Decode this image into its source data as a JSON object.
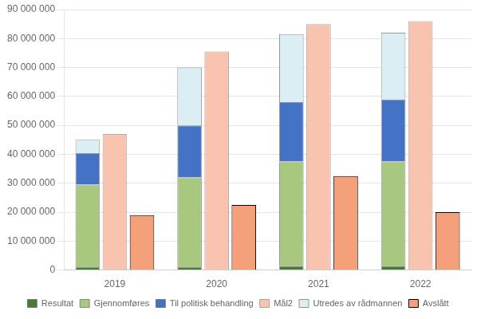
{
  "chart_data": {
    "type": "bar",
    "categories": [
      "2019",
      "2020",
      "2021",
      "2022"
    ],
    "series": [
      {
        "name": "Resultat",
        "color": "#4a7a3a",
        "stacked": true,
        "values": [
          1000000,
          1000000,
          1500000,
          1500000
        ]
      },
      {
        "name": "Gjennomføres",
        "color": "#a8c880",
        "stacked": true,
        "values": [
          28500000,
          31000000,
          36000000,
          36000000
        ]
      },
      {
        "name": "Til politisk behandling",
        "color": "#4472c4",
        "stacked": true,
        "values": [
          11000000,
          18000000,
          20500000,
          21500000
        ]
      },
      {
        "name": "Mål2",
        "color": "#f8c4b0",
        "stacked": false,
        "values": [
          47000000,
          75500000,
          85000000,
          86000000
        ]
      },
      {
        "name": "Utredes av rådmannen",
        "color": "#daeef3",
        "stacked": true,
        "values": [
          4500000,
          20000000,
          23500000,
          23000000
        ]
      },
      {
        "name": "Avslått",
        "color": "#f4a07a",
        "stacked": false,
        "line_style": "dashed",
        "values": [
          19000000,
          22500000,
          32500000,
          20000000
        ]
      }
    ],
    "ylim": [
      0,
      90000000
    ],
    "yticks": [
      0,
      {
        "value": 10000000,
        "label": "10 000 000"
      },
      {
        "value": 20000000,
        "label": "20 000 000"
      },
      {
        "value": 30000000,
        "label": "30 000 000"
      },
      {
        "value": 40000000,
        "label": "40 000 000"
      },
      {
        "value": 50000000,
        "label": "50 000 000"
      },
      {
        "value": 60000000,
        "label": "60 000 000"
      },
      {
        "value": 70000000,
        "label": "70 000 000"
      },
      {
        "value": 80000000,
        "label": "80 000 000"
      },
      {
        "value": 90000000,
        "label": "90 000 000"
      }
    ],
    "grid": true,
    "legend": "bottom"
  }
}
